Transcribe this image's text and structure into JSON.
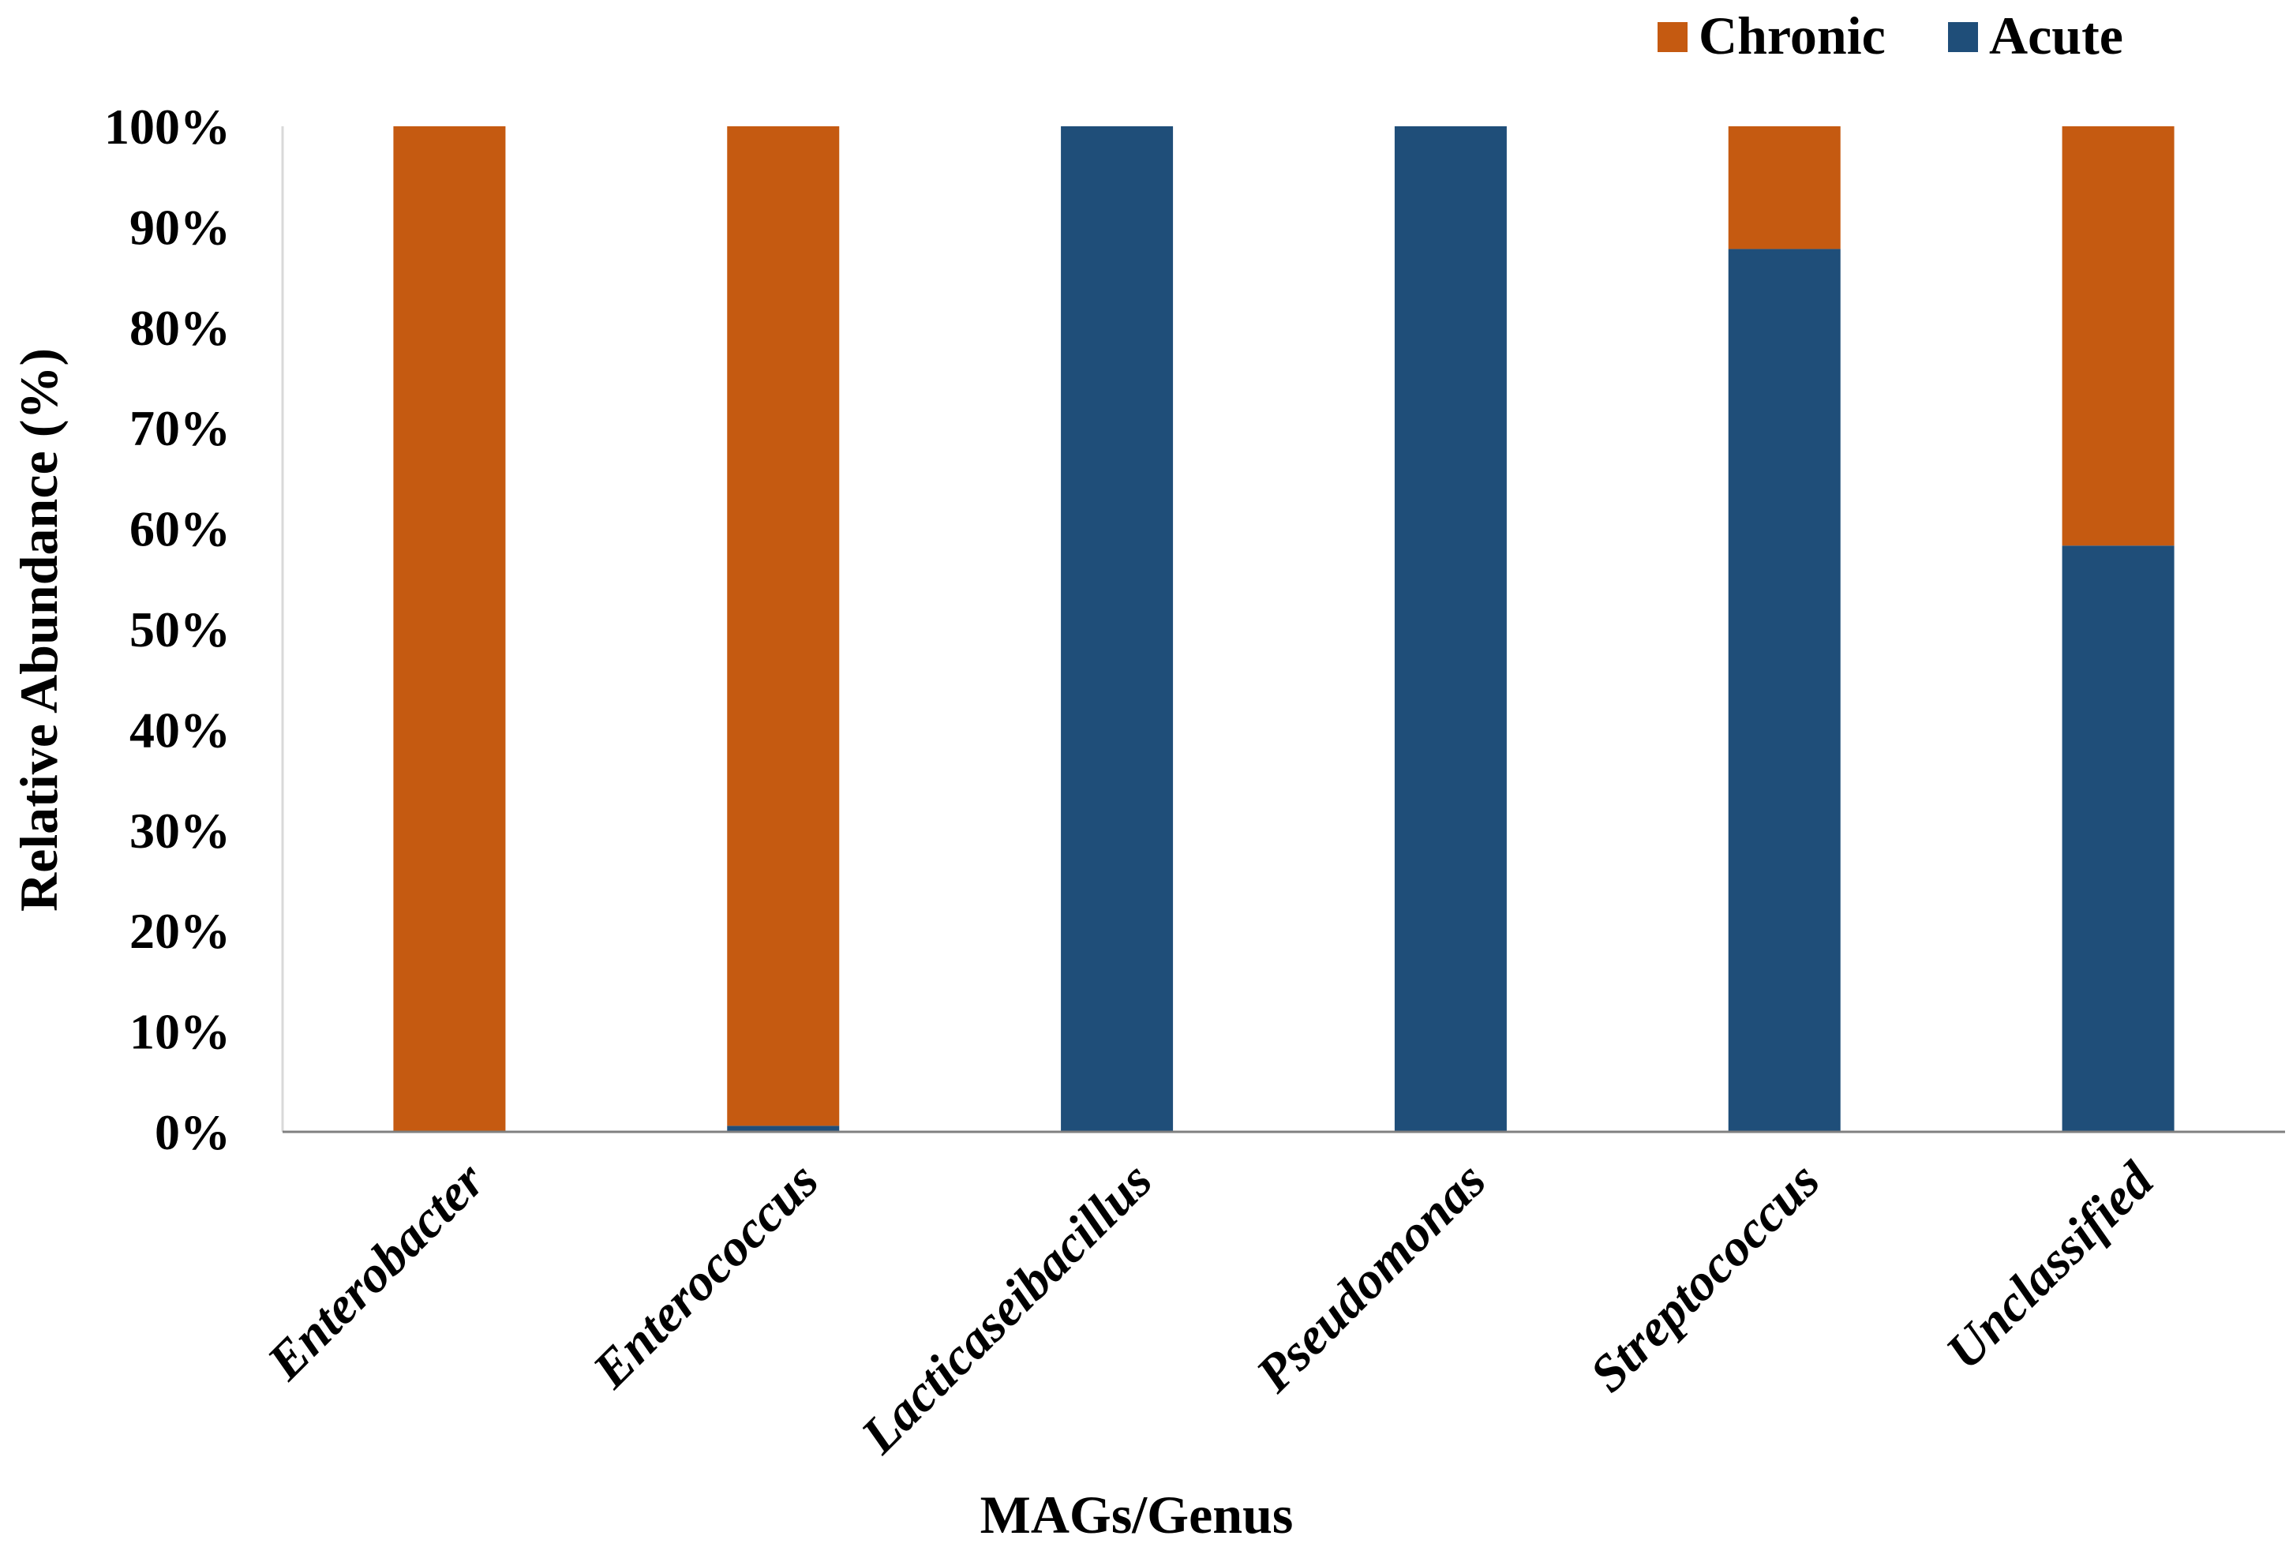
{
  "chart_data": {
    "type": "bar",
    "stacked": true,
    "percent": true,
    "title": "",
    "xlabel": "MAGs/Genus",
    "ylabel": "Relative Abundance (%)",
    "ylim": [
      0,
      100
    ],
    "yticks": [
      "0%",
      "10%",
      "20%",
      "30%",
      "40%",
      "50%",
      "60%",
      "70%",
      "80%",
      "90%",
      "100%"
    ],
    "categories": [
      "Enterobacter",
      "Enterococcus",
      "Lacticaseibacillus",
      "Pseudomonas",
      "Streptococcus",
      "Unclassified"
    ],
    "series": [
      {
        "name": "Acute",
        "color": "#1F4E79",
        "values": [
          0,
          0.6,
          100,
          100,
          87.8,
          58.3
        ]
      },
      {
        "name": "Chronic",
        "color": "#C55A11",
        "values": [
          100,
          99.4,
          0,
          0,
          12.2,
          41.7
        ]
      }
    ],
    "legend": {
      "position": "top-right",
      "entries": [
        {
          "label": "Chronic",
          "color": "#C55A11"
        },
        {
          "label": "Acute",
          "color": "#1F4E79"
        }
      ]
    },
    "grid": false
  }
}
